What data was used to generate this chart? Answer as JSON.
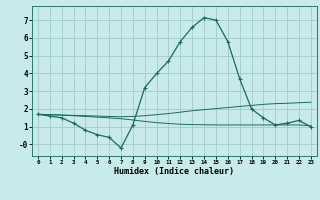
{
  "xlabel": "Humidex (Indice chaleur)",
  "bg_color": "#c8eaea",
  "grid_color": "#a0cccc",
  "line_color": "#1a6b5a",
  "xlim": [
    -0.5,
    23.5
  ],
  "ylim": [
    -0.65,
    7.8
  ],
  "xticks": [
    0,
    1,
    2,
    3,
    4,
    5,
    6,
    7,
    8,
    9,
    10,
    11,
    12,
    13,
    14,
    15,
    16,
    17,
    18,
    19,
    20,
    21,
    22,
    23
  ],
  "yticks": [
    0,
    1,
    2,
    3,
    4,
    5,
    6,
    7
  ],
  "ytick_labels": [
    "-0",
    "1",
    "2",
    "3",
    "4",
    "5",
    "6",
    "7"
  ],
  "line1_x": [
    0,
    1,
    2,
    3,
    4,
    5,
    6,
    7,
    8,
    9,
    10,
    11,
    12,
    13,
    14,
    15,
    16,
    17,
    18,
    19,
    20,
    21,
    22,
    23
  ],
  "line1_y": [
    1.7,
    1.6,
    1.5,
    1.2,
    0.8,
    0.55,
    0.4,
    -0.2,
    1.1,
    3.2,
    4.0,
    4.7,
    5.8,
    6.6,
    7.15,
    7.0,
    5.8,
    3.7,
    2.0,
    1.5,
    1.1,
    1.2,
    1.35,
    1.0
  ],
  "line2_x": [
    0,
    1,
    2,
    3,
    4,
    5,
    6,
    7,
    8,
    9,
    10,
    11,
    12,
    13,
    14,
    15,
    16,
    17,
    18,
    19,
    20,
    21,
    22,
    23
  ],
  "line2_y": [
    1.7,
    1.68,
    1.66,
    1.64,
    1.62,
    1.6,
    1.58,
    1.56,
    1.58,
    1.62,
    1.68,
    1.74,
    1.82,
    1.9,
    1.96,
    2.02,
    2.08,
    2.14,
    2.2,
    2.26,
    2.3,
    2.32,
    2.35,
    2.38
  ],
  "line3_x": [
    0,
    1,
    2,
    3,
    4,
    5,
    6,
    7,
    8,
    9,
    10,
    11,
    12,
    13,
    14,
    15,
    16,
    17,
    18,
    19,
    20,
    21,
    22,
    23
  ],
  "line3_y": [
    1.7,
    1.68,
    1.65,
    1.62,
    1.58,
    1.54,
    1.5,
    1.45,
    1.38,
    1.3,
    1.23,
    1.18,
    1.14,
    1.12,
    1.11,
    1.1,
    1.1,
    1.1,
    1.1,
    1.1,
    1.1,
    1.1,
    1.1,
    1.05
  ]
}
